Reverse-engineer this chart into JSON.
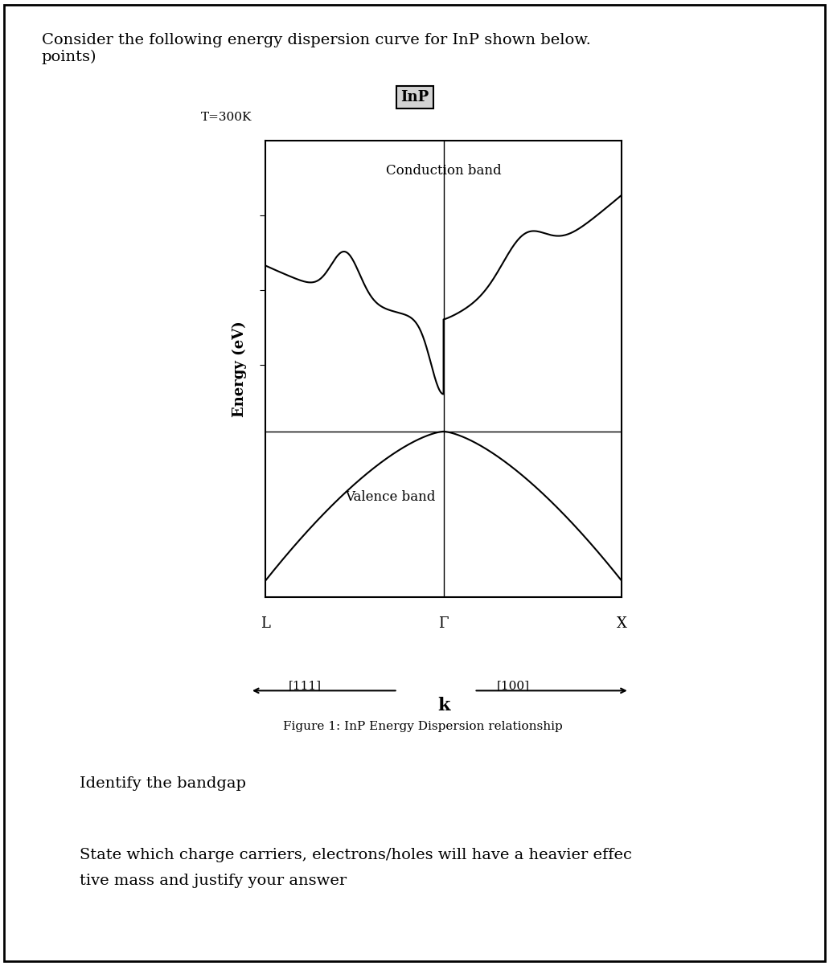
{
  "title_text": "Consider the following energy dispersion curve for InP shown below.\npoints)",
  "fig_caption": "Figure 1: InP Energy Dispersion relationship",
  "inP_label": "InP",
  "temp_label": "T=300K",
  "conduction_label": "Conduction band",
  "valence_label": "Valence band",
  "ylabel": "Energy (eV)",
  "xlabel_main": "k",
  "L_label": "L",
  "Gamma_label": "Γ",
  "X_label": "X",
  "k111_label": "[111]",
  "k100_label": "[100]",
  "q1_text": "Identify the bandgap",
  "q2_text": "State which charge carriers, electrons/holes will have a heavier effec\ntive mass and justify your answer",
  "bg_color": "#ffffff",
  "line_color": "#000000",
  "axis_bg": "#ffffff"
}
